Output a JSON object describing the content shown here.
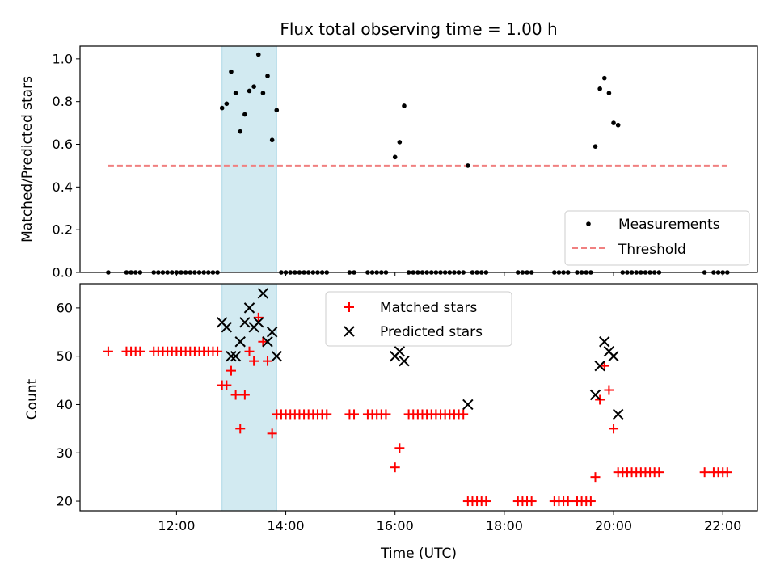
{
  "colors": {
    "measurement": "#000000",
    "threshold": "#f08080",
    "matched": "#ff0000",
    "predicted": "#000000",
    "highlight": "#add8e6"
  },
  "chart_data": [
    {
      "type": "scatter",
      "title": "Flux total observing time = 1.00 h",
      "xlabel": "",
      "ylabel": "Matched/Predicted stars",
      "xlim": [
        "10:14",
        "22:38"
      ],
      "ylim": [
        0,
        1.06
      ],
      "y_ticks": [
        "0.0",
        "0.2",
        "0.4",
        "0.6",
        "0.8",
        "1.0"
      ],
      "x_ticks": [
        "12:00",
        "14:00",
        "16:00",
        "18:00",
        "20:00",
        "22:00"
      ],
      "highlight_span": [
        "12:50",
        "13:50"
      ],
      "legend": {
        "placement": "lower right",
        "entries": [
          "Measurements",
          "Threshold"
        ]
      },
      "threshold": {
        "name": "Threshold",
        "value": 0.5,
        "x_range": [
          "10:45",
          "22:05"
        ]
      },
      "series": [
        {
          "name": "Measurements",
          "points": [
            [
              "12:50",
              0.77
            ],
            [
              "12:55",
              0.79
            ],
            [
              "13:00",
              0.94
            ],
            [
              "13:05",
              0.84
            ],
            [
              "13:10",
              0.66
            ],
            [
              "13:15",
              0.74
            ],
            [
              "13:20",
              0.85
            ],
            [
              "13:25",
              0.87
            ],
            [
              "13:30",
              1.02
            ],
            [
              "13:35",
              0.84
            ],
            [
              "13:40",
              0.92
            ],
            [
              "13:45",
              0.62
            ],
            [
              "13:50",
              0.76
            ],
            [
              "16:00",
              0.54
            ],
            [
              "16:05",
              0.61
            ],
            [
              "16:10",
              0.78
            ],
            [
              "17:20",
              0.5
            ],
            [
              "19:40",
              0.59
            ],
            [
              "19:45",
              0.86
            ],
            [
              "19:50",
              0.91
            ],
            [
              "19:55",
              0.84
            ],
            [
              "20:00",
              0.7
            ],
            [
              "20:05",
              0.69
            ],
            [
              "10:45",
              0
            ],
            [
              "11:05",
              0
            ],
            [
              "11:10",
              0
            ],
            [
              "11:15",
              0
            ],
            [
              "11:20",
              0
            ],
            [
              "11:35",
              0
            ],
            [
              "11:40",
              0
            ],
            [
              "11:45",
              0
            ],
            [
              "11:50",
              0
            ],
            [
              "11:55",
              0
            ],
            [
              "12:00",
              0
            ],
            [
              "12:05",
              0
            ],
            [
              "12:10",
              0
            ],
            [
              "12:15",
              0
            ],
            [
              "12:20",
              0
            ],
            [
              "12:25",
              0
            ],
            [
              "12:30",
              0
            ],
            [
              "12:35",
              0
            ],
            [
              "12:40",
              0
            ],
            [
              "12:45",
              0
            ],
            [
              "13:55",
              0
            ],
            [
              "14:00",
              0
            ],
            [
              "14:05",
              0
            ],
            [
              "14:10",
              0
            ],
            [
              "14:15",
              0
            ],
            [
              "14:20",
              0
            ],
            [
              "14:25",
              0
            ],
            [
              "14:30",
              0
            ],
            [
              "14:35",
              0
            ],
            [
              "14:40",
              0
            ],
            [
              "14:45",
              0
            ],
            [
              "15:10",
              0
            ],
            [
              "15:15",
              0
            ],
            [
              "15:30",
              0
            ],
            [
              "15:35",
              0
            ],
            [
              "15:40",
              0
            ],
            [
              "15:45",
              0
            ],
            [
              "15:50",
              0
            ],
            [
              "16:15",
              0
            ],
            [
              "16:20",
              0
            ],
            [
              "16:25",
              0
            ],
            [
              "16:30",
              0
            ],
            [
              "16:35",
              0
            ],
            [
              "16:40",
              0
            ],
            [
              "16:45",
              0
            ],
            [
              "16:50",
              0
            ],
            [
              "16:55",
              0
            ],
            [
              "17:00",
              0
            ],
            [
              "17:05",
              0
            ],
            [
              "17:10",
              0
            ],
            [
              "17:15",
              0
            ],
            [
              "17:25",
              0
            ],
            [
              "17:30",
              0
            ],
            [
              "17:35",
              0
            ],
            [
              "17:40",
              0
            ],
            [
              "18:15",
              0
            ],
            [
              "18:20",
              0
            ],
            [
              "18:25",
              0
            ],
            [
              "18:30",
              0
            ],
            [
              "18:55",
              0
            ],
            [
              "19:00",
              0
            ],
            [
              "19:05",
              0
            ],
            [
              "19:10",
              0
            ],
            [
              "19:20",
              0
            ],
            [
              "19:25",
              0
            ],
            [
              "19:30",
              0
            ],
            [
              "19:35",
              0
            ],
            [
              "20:10",
              0
            ],
            [
              "20:15",
              0
            ],
            [
              "20:20",
              0
            ],
            [
              "20:25",
              0
            ],
            [
              "20:30",
              0
            ],
            [
              "20:35",
              0
            ],
            [
              "20:40",
              0
            ],
            [
              "20:45",
              0
            ],
            [
              "20:50",
              0
            ],
            [
              "21:40",
              0
            ],
            [
              "21:50",
              0
            ],
            [
              "21:55",
              0
            ],
            [
              "22:00",
              0
            ],
            [
              "22:05",
              0
            ]
          ]
        }
      ]
    },
    {
      "type": "scatter",
      "title": "",
      "xlabel": "Time (UTC)",
      "ylabel": "Count",
      "xlim": [
        "10:14",
        "22:38"
      ],
      "ylim": [
        18,
        65
      ],
      "y_ticks": [
        "20",
        "30",
        "40",
        "50",
        "60"
      ],
      "x_ticks": [
        "12:00",
        "14:00",
        "16:00",
        "18:00",
        "20:00",
        "22:00"
      ],
      "highlight_span": [
        "12:50",
        "13:50"
      ],
      "legend": {
        "placement": "upper center",
        "entries": [
          "Matched stars",
          "Predicted stars"
        ]
      },
      "series": [
        {
          "name": "Matched stars",
          "points": [
            [
              "10:45",
              51
            ],
            [
              "11:05",
              51
            ],
            [
              "11:10",
              51
            ],
            [
              "11:15",
              51
            ],
            [
              "11:20",
              51
            ],
            [
              "11:35",
              51
            ],
            [
              "11:40",
              51
            ],
            [
              "11:45",
              51
            ],
            [
              "11:50",
              51
            ],
            [
              "11:55",
              51
            ],
            [
              "12:00",
              51
            ],
            [
              "12:05",
              51
            ],
            [
              "12:10",
              51
            ],
            [
              "12:15",
              51
            ],
            [
              "12:20",
              51
            ],
            [
              "12:25",
              51
            ],
            [
              "12:30",
              51
            ],
            [
              "12:35",
              51
            ],
            [
              "12:40",
              51
            ],
            [
              "12:45",
              51
            ],
            [
              "12:50",
              44
            ],
            [
              "12:55",
              44
            ],
            [
              "13:00",
              47
            ],
            [
              "13:05",
              42
            ],
            [
              "13:10",
              35
            ],
            [
              "13:15",
              42
            ],
            [
              "13:20",
              51
            ],
            [
              "13:25",
              49
            ],
            [
              "13:30",
              58
            ],
            [
              "13:35",
              53
            ],
            [
              "13:40",
              49
            ],
            [
              "13:45",
              34
            ],
            [
              "13:50",
              38
            ],
            [
              "13:55",
              38
            ],
            [
              "14:00",
              38
            ],
            [
              "14:05",
              38
            ],
            [
              "14:10",
              38
            ],
            [
              "14:15",
              38
            ],
            [
              "14:20",
              38
            ],
            [
              "14:25",
              38
            ],
            [
              "14:30",
              38
            ],
            [
              "14:35",
              38
            ],
            [
              "14:40",
              38
            ],
            [
              "14:45",
              38
            ],
            [
              "15:10",
              38
            ],
            [
              "15:15",
              38
            ],
            [
              "15:30",
              38
            ],
            [
              "15:35",
              38
            ],
            [
              "15:40",
              38
            ],
            [
              "15:45",
              38
            ],
            [
              "15:50",
              38
            ],
            [
              "16:00",
              27
            ],
            [
              "16:05",
              31
            ],
            [
              "16:15",
              38
            ],
            [
              "16:20",
              38
            ],
            [
              "16:25",
              38
            ],
            [
              "16:30",
              38
            ],
            [
              "16:35",
              38
            ],
            [
              "16:40",
              38
            ],
            [
              "16:45",
              38
            ],
            [
              "16:50",
              38
            ],
            [
              "16:55",
              38
            ],
            [
              "17:00",
              38
            ],
            [
              "17:05",
              38
            ],
            [
              "17:10",
              38
            ],
            [
              "17:15",
              38
            ],
            [
              "17:20",
              20
            ],
            [
              "17:25",
              20
            ],
            [
              "17:30",
              20
            ],
            [
              "17:35",
              20
            ],
            [
              "17:40",
              20
            ],
            [
              "18:15",
              20
            ],
            [
              "18:20",
              20
            ],
            [
              "18:25",
              20
            ],
            [
              "18:30",
              20
            ],
            [
              "18:55",
              20
            ],
            [
              "19:00",
              20
            ],
            [
              "19:05",
              20
            ],
            [
              "19:10",
              20
            ],
            [
              "19:20",
              20
            ],
            [
              "19:25",
              20
            ],
            [
              "19:30",
              20
            ],
            [
              "19:35",
              20
            ],
            [
              "19:40",
              25
            ],
            [
              "19:45",
              41
            ],
            [
              "19:50",
              48
            ],
            [
              "19:55",
              43
            ],
            [
              "20:00",
              35
            ],
            [
              "20:05",
              26
            ],
            [
              "20:10",
              26
            ],
            [
              "20:15",
              26
            ],
            [
              "20:20",
              26
            ],
            [
              "20:25",
              26
            ],
            [
              "20:30",
              26
            ],
            [
              "20:35",
              26
            ],
            [
              "20:40",
              26
            ],
            [
              "20:45",
              26
            ],
            [
              "20:50",
              26
            ],
            [
              "21:40",
              26
            ],
            [
              "21:50",
              26
            ],
            [
              "21:55",
              26
            ],
            [
              "22:00",
              26
            ],
            [
              "22:05",
              26
            ]
          ]
        },
        {
          "name": "Predicted stars",
          "points": [
            [
              "12:50",
              57
            ],
            [
              "12:55",
              56
            ],
            [
              "13:00",
              50
            ],
            [
              "13:05",
              50
            ],
            [
              "13:10",
              53
            ],
            [
              "13:15",
              57
            ],
            [
              "13:20",
              60
            ],
            [
              "13:25",
              56
            ],
            [
              "13:30",
              57
            ],
            [
              "13:35",
              63
            ],
            [
              "13:40",
              53
            ],
            [
              "13:45",
              55
            ],
            [
              "13:50",
              50
            ],
            [
              "16:00",
              50
            ],
            [
              "16:05",
              51
            ],
            [
              "16:10",
              49
            ],
            [
              "17:20",
              40
            ],
            [
              "19:40",
              42
            ],
            [
              "19:45",
              48
            ],
            [
              "19:50",
              53
            ],
            [
              "19:55",
              51
            ],
            [
              "20:00",
              50
            ],
            [
              "20:05",
              38
            ]
          ]
        }
      ]
    }
  ]
}
